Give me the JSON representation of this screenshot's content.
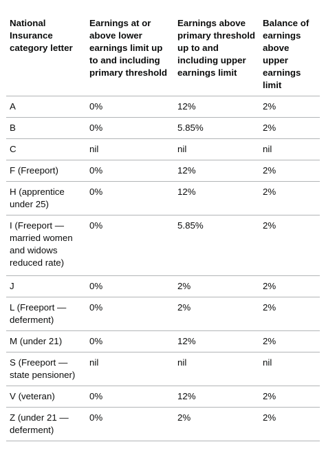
{
  "table": {
    "headers": [
      "National Insurance category letter",
      "Earnings at or above lower earnings limit up to and including primary threshold",
      "Earnings above primary threshold up to and including upper earnings limit",
      "Balance of earnings above upper earnings limit"
    ],
    "rows": [
      [
        "A",
        "0%",
        "12%",
        "2%"
      ],
      [
        "B",
        "0%",
        "5.85%",
        "2%"
      ],
      [
        "C",
        "nil",
        "nil",
        "nil"
      ],
      [
        "F (Freeport)",
        "0%",
        "12%",
        "2%"
      ],
      [
        "H (apprentice under 25)",
        "0%",
        "12%",
        "2%"
      ],
      [
        "I (Freeport — married women and widows reduced rate)",
        "0%",
        "5.85%",
        "2%"
      ],
      [
        "J",
        "0%",
        "2%",
        "2%"
      ],
      [
        "L (Freeport — deferment)",
        "0%",
        "2%",
        "2%"
      ],
      [
        "M (under 21)",
        "0%",
        "12%",
        "2%"
      ],
      [
        "S (Freeport — state pensioner)",
        "nil",
        "nil",
        "nil"
      ],
      [
        "V (veteran)",
        "0%",
        "12%",
        "2%"
      ],
      [
        "Z (under 21 — deferment)",
        "0%",
        "2%",
        "2%"
      ]
    ]
  }
}
